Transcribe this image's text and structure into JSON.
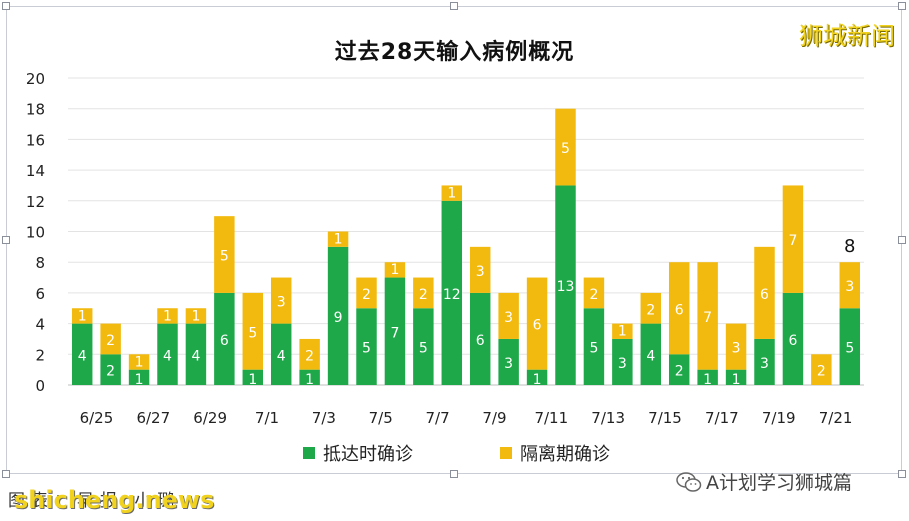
{
  "brand": "狮城新闻",
  "watermark": "shicheng.news",
  "footer_left": "图表：早报 小璐",
  "wechat_account": "A计划学习狮城篇",
  "colors": {
    "arrival": "#1fa84a",
    "quarantine": "#f2b90f"
  },
  "chart_data": {
    "type": "bar",
    "stacked": true,
    "title": "过去28天输入病例概况",
    "categories": [
      "6/25",
      "6/26",
      "6/27",
      "6/28",
      "6/29",
      "6/30",
      "7/1",
      "7/2",
      "7/3",
      "7/4",
      "7/5",
      "7/6",
      "7/7",
      "7/8",
      "7/9",
      "7/10",
      "7/11",
      "7/12",
      "7/13",
      "7/14",
      "7/15",
      "7/16",
      "7/17",
      "7/18",
      "7/19",
      "7/20",
      "7/21",
      "7/22"
    ],
    "tick_labels": [
      "6/25",
      "",
      "6/27",
      "",
      "6/29",
      "",
      "7/1",
      "",
      "7/3",
      "",
      "7/5",
      "",
      "7/7",
      "",
      "7/9",
      "",
      "7/11",
      "",
      "7/13",
      "",
      "7/15",
      "",
      "7/17",
      "",
      "7/19",
      "",
      "7/21",
      ""
    ],
    "series": [
      {
        "name": "抵达时确诊",
        "values": [
          4,
          2,
          1,
          4,
          4,
          6,
          1,
          4,
          1,
          9,
          5,
          7,
          5,
          12,
          6,
          3,
          1,
          13,
          5,
          3,
          4,
          2,
          1,
          1,
          3,
          6,
          0,
          5
        ]
      },
      {
        "name": "隔离期确诊",
        "values": [
          1,
          2,
          1,
          1,
          1,
          5,
          5,
          3,
          2,
          1,
          2,
          1,
          2,
          1,
          3,
          3,
          6,
          5,
          2,
          1,
          2,
          6,
          7,
          3,
          6,
          7,
          2,
          3
        ]
      }
    ],
    "segment_labels": {
      "arrival": [
        "4",
        "2",
        "1",
        "4",
        "4",
        "6",
        "1",
        "4",
        "1",
        "9",
        "5",
        "7",
        "5",
        "12",
        "6",
        "3",
        "1",
        "13",
        "5",
        "3",
        "4",
        "2",
        "1",
        "1",
        "3",
        "6",
        "",
        "5"
      ],
      "quarantine": [
        "1",
        "2",
        "1",
        "1",
        "1",
        "5",
        "5",
        "3",
        "2",
        "1",
        "2",
        "1",
        "2",
        "1",
        "3",
        "3",
        "6",
        "5",
        "2",
        "1",
        "2",
        "6",
        "7",
        "3",
        "6",
        "7",
        "2",
        "3"
      ]
    },
    "annotation": {
      "category": "7/22",
      "text": "8"
    },
    "yticks": [
      "0",
      "2",
      "4",
      "6",
      "8",
      "10",
      "12",
      "14",
      "16",
      "18",
      "20"
    ],
    "ylim": [
      0,
      20
    ],
    "grid": true,
    "legend_position": "bottom"
  }
}
